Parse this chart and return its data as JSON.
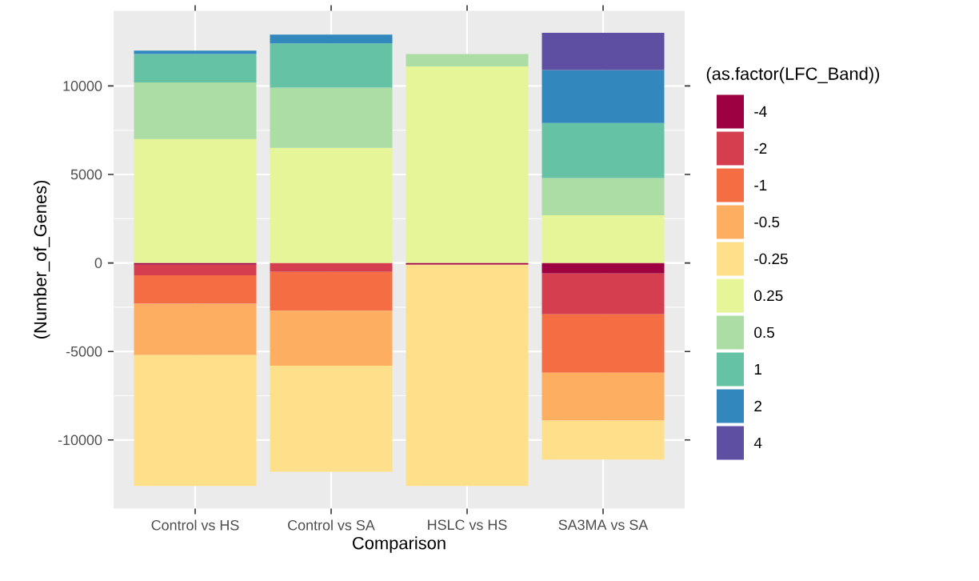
{
  "chart_data": {
    "type": "bar",
    "stacked": true,
    "xlabel": "Comparison",
    "ylabel": "(Number_of_Genes)",
    "legend_title": "(as.factor(LFC_Band))",
    "categories": [
      "Control vs HS",
      "Control vs SA",
      "HSLC vs HS",
      "SA3MA vs SA"
    ],
    "series": [
      {
        "name": "-4",
        "color": "#9e0142",
        "values": [
          -100,
          null,
          -100,
          -600
        ]
      },
      {
        "name": "-2",
        "color": "#d53e4f",
        "values": [
          -600,
          -500,
          null,
          -2300
        ]
      },
      {
        "name": "-1",
        "color": "#f46d43",
        "values": [
          -1600,
          -2200,
          null,
          -3300
        ]
      },
      {
        "name": "-0.5",
        "color": "#fdae61",
        "values": [
          -2900,
          -3100,
          null,
          -2700
        ]
      },
      {
        "name": "-0.25",
        "color": "#fee08b",
        "values": [
          -7400,
          -6000,
          -12500,
          -2200
        ]
      },
      {
        "name": "0.25",
        "color": "#e6f598",
        "values": [
          7000,
          6500,
          11100,
          2700
        ]
      },
      {
        "name": "0.5",
        "color": "#abdda4",
        "values": [
          3200,
          3400,
          700,
          2100
        ]
      },
      {
        "name": "1",
        "color": "#66c2a5",
        "values": [
          1600,
          2500,
          null,
          3100
        ]
      },
      {
        "name": "2",
        "color": "#3288bd",
        "values": [
          200,
          500,
          null,
          3000
        ]
      },
      {
        "name": "4",
        "color": "#5e4fa2",
        "values": [
          null,
          null,
          null,
          2100
        ]
      }
    ],
    "ylim": [
      -13870,
      14250
    ],
    "yticks": [
      -10000,
      -5000,
      0,
      5000,
      10000
    ],
    "grid": true,
    "legend": "right"
  }
}
